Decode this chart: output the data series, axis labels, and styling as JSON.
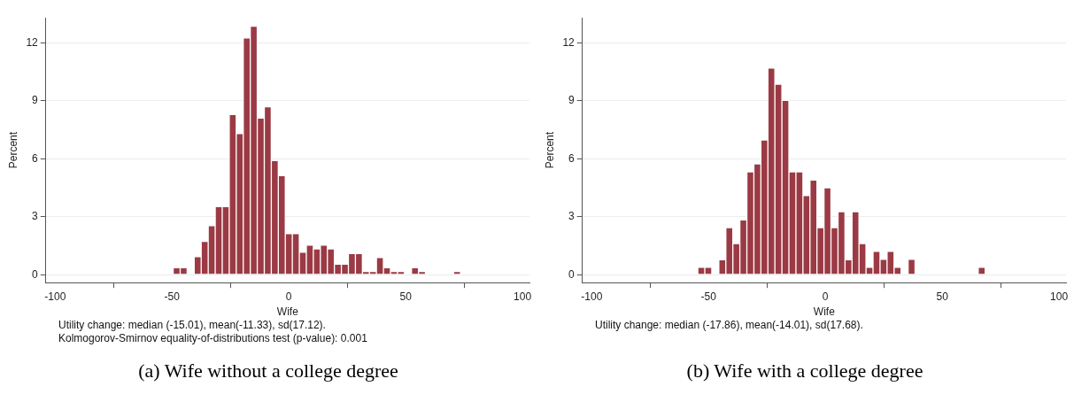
{
  "chart_data": [
    {
      "type": "histogram",
      "xlabel": "Wife",
      "ylabel": "Percent",
      "bins": [
        -49.5,
        -46.5,
        -43.5,
        -40.5,
        -37.5,
        -34.5,
        -31.5,
        -28.5,
        -25.5,
        -22.5,
        -19.5,
        -16.5,
        -13.5,
        -10.5,
        -7.5,
        -4.5,
        -1.5,
        1.5,
        4.5,
        7.5,
        10.5,
        13.5,
        16.5,
        19.5,
        22.5,
        25.5,
        28.5,
        31.5,
        34.5,
        37.5,
        40.5,
        43.5,
        46.5,
        49.5,
        52.5,
        55.5,
        58.5,
        61.5,
        64.5,
        67.5,
        70.5,
        73.5
      ],
      "series": [
        {
          "color": "#9b3a44",
          "values": [
            0.37,
            0.37,
            0,
            0.95,
            1.74,
            2.55,
            3.53,
            3.53,
            8.29,
            7.31,
            12.26,
            12.86,
            8.11,
            8.69,
            5.91,
            5.13,
            2.14,
            2.14,
            1.17,
            1.54,
            1.35,
            1.54,
            1.35,
            0.55,
            0.55,
            1.1,
            1.1,
            0.18,
            0.18,
            0.9,
            0.37,
            0.18,
            0.18,
            0,
            0.37,
            0.18,
            0,
            0,
            0,
            0,
            0.18
          ]
        }
      ],
      "xlim": [
        -104,
        103
      ],
      "xticks": [
        -100,
        -50,
        0,
        50,
        100
      ],
      "ylim": [
        -0.4,
        13.3
      ],
      "yticks": [
        0,
        3,
        6,
        9,
        12
      ],
      "grid": "y",
      "legend": false,
      "annotations": [
        "Utility change: median (-15.01), mean(-11.33), sd(17.12).",
        "Kolmogorov-Smirnov equality-of-distributions test (p-value): 0.001",
        "(a) Wife without a college degree"
      ]
    },
    {
      "type": "histogram",
      "xlabel": "Wife",
      "ylabel": "Percent",
      "bins": [
        -54.6,
        -51.6,
        -48.6,
        -45.6,
        -42.6,
        -39.6,
        -36.6,
        -33.6,
        -30.6,
        -27.6,
        -24.6,
        -21.6,
        -18.6,
        -15.6,
        -12.6,
        -9.6,
        -6.6,
        -3.6,
        -0.6,
        2.4,
        5.4,
        8.4,
        11.4,
        14.4,
        17.4,
        20.4,
        23.4,
        26.4,
        29.4,
        32.4,
        35.4,
        38.4,
        41.4,
        44.4,
        47.4,
        50.4,
        53.4,
        56.4,
        59.4,
        62.4,
        65.4,
        68.4
      ],
      "series": [
        {
          "color": "#9b3a44",
          "values": [
            0.4,
            0.4,
            0,
            0.79,
            2.45,
            1.62,
            2.85,
            5.33,
            5.74,
            6.98,
            10.7,
            9.86,
            9.03,
            5.33,
            5.33,
            4.1,
            4.91,
            2.45,
            4.5,
            2.45,
            3.27,
            0.79,
            3.27,
            1.62,
            0.4,
            1.22,
            0.81,
            1.22,
            0.4,
            0,
            0.81,
            0,
            0,
            0,
            0,
            0,
            0,
            0,
            0,
            0,
            0.4
          ]
        }
      ],
      "xlim": [
        -104,
        103
      ],
      "xticks": [
        -100,
        -50,
        0,
        50,
        100
      ],
      "ylim": [
        -0.4,
        13.3
      ],
      "yticks": [
        0,
        3,
        6,
        9,
        12
      ],
      "grid": "y",
      "legend": false,
      "annotations": [
        "Utility change: median (-17.86), mean(-14.01), sd(17.68).",
        "(b) Wife with a college degree"
      ]
    }
  ]
}
